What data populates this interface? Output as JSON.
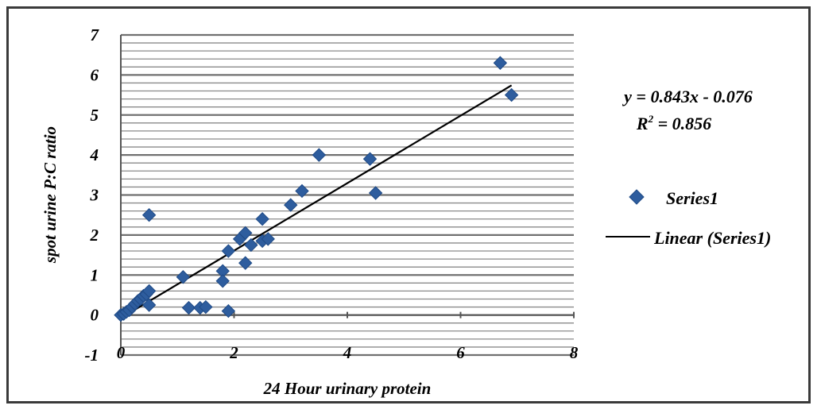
{
  "chart_data": {
    "type": "scatter",
    "xlabel": "24 Hour urinary protein",
    "ylabel": "spot urine P:C ratio",
    "xlim": [
      0,
      8
    ],
    "ylim": [
      -1,
      7
    ],
    "x_ticks": [
      "0",
      "2",
      "4",
      "6",
      "8"
    ],
    "y_ticks": [
      "-1",
      "0",
      "1",
      "2",
      "3",
      "4",
      "5",
      "6",
      "7"
    ],
    "grid": "horizontal, dense",
    "legend_position": "right",
    "series": [
      {
        "name": "Series1",
        "marker": "diamond",
        "color": "#2e5d9e",
        "points": [
          [
            0.0,
            0.0
          ],
          [
            0.05,
            0.03
          ],
          [
            0.1,
            0.08
          ],
          [
            0.15,
            0.12
          ],
          [
            0.2,
            0.2
          ],
          [
            0.25,
            0.28
          ],
          [
            0.3,
            0.35
          ],
          [
            0.35,
            0.4
          ],
          [
            0.4,
            0.48
          ],
          [
            0.45,
            0.52
          ],
          [
            0.5,
            0.6
          ],
          [
            0.5,
            0.25
          ],
          [
            0.5,
            2.5
          ],
          [
            1.1,
            0.95
          ],
          [
            1.2,
            0.18
          ],
          [
            1.4,
            0.18
          ],
          [
            1.5,
            0.2
          ],
          [
            1.8,
            1.1
          ],
          [
            1.8,
            0.85
          ],
          [
            1.9,
            1.6
          ],
          [
            1.9,
            0.1
          ],
          [
            2.1,
            1.9
          ],
          [
            2.2,
            2.05
          ],
          [
            2.2,
            1.3
          ],
          [
            2.3,
            1.75
          ],
          [
            2.5,
            2.4
          ],
          [
            2.5,
            1.85
          ],
          [
            2.6,
            1.9
          ],
          [
            3.0,
            2.75
          ],
          [
            3.2,
            3.1
          ],
          [
            3.5,
            4.0
          ],
          [
            4.4,
            3.9
          ],
          [
            4.5,
            3.05
          ],
          [
            6.7,
            6.3
          ],
          [
            6.9,
            5.5
          ]
        ]
      },
      {
        "name": "Linear (Series1)",
        "type": "line",
        "color": "#000000",
        "slope": 0.843,
        "intercept": -0.076,
        "x_range": [
          0,
          6.9
        ]
      }
    ],
    "annotations": {
      "equation": "y = 0.843x - 0.076",
      "r2_prefix": "R",
      "r2_exp": "2",
      "r2_value": " = 0.856"
    }
  }
}
